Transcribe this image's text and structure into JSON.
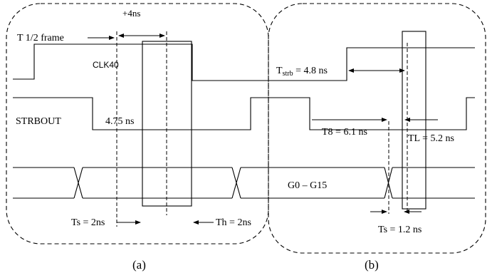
{
  "panel_a": {
    "caption": "(a)",
    "half_frame_label": "T 1/2 frame",
    "plus4_label": "+4ns",
    "clk_label": "CLK40",
    "strbout_label": "STRBOUT",
    "delay_label": "4.75 ns",
    "ts_label": "Ts = 2ns",
    "th_label": "Th = 2ns"
  },
  "panel_b": {
    "caption": "(b)",
    "tstrb_main": "T",
    "tstrb_sub": "strb",
    "tstrb_value": " = 4.8 ns",
    "t8_label": "T8 = 6.1 ns",
    "tl_label": "TL = 5.2 ns",
    "g_label": "G0 – G15",
    "ts_label": "Ts = 1.2 ns"
  }
}
